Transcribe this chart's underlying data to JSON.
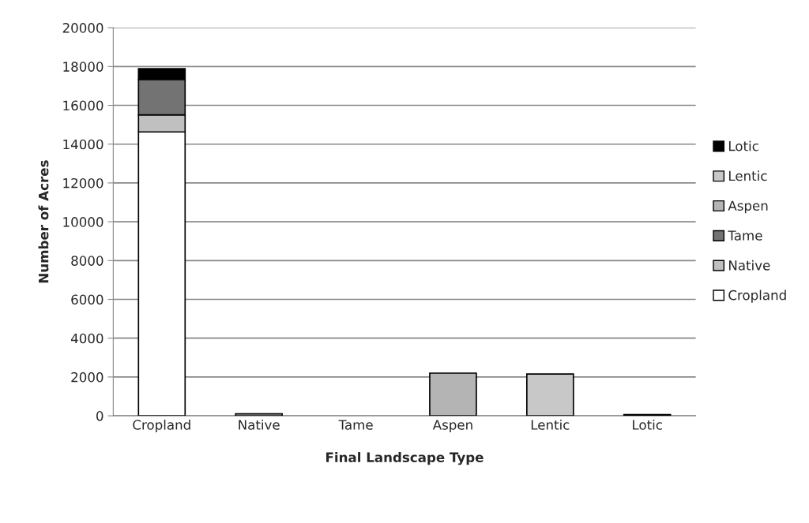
{
  "chart_data": {
    "type": "bar",
    "stacked": true,
    "xlabel": "Final Landscape Type",
    "ylabel": "Number of Acres",
    "categories": [
      "Cropland",
      "Native",
      "Tame",
      "Aspen",
      "Lentic",
      "Lotic"
    ],
    "series": [
      {
        "name": "Cropland",
        "color": "#ffffff",
        "values": [
          14630,
          0,
          0,
          0,
          0,
          0
        ]
      },
      {
        "name": "Native",
        "color": "#c0c0c0",
        "values": [
          880,
          100,
          0,
          0,
          0,
          0
        ]
      },
      {
        "name": "Tame",
        "color": "#737373",
        "values": [
          1830,
          0,
          0,
          0,
          0,
          0
        ]
      },
      {
        "name": "Aspen",
        "color": "#b4b4b4",
        "values": [
          0,
          0,
          0,
          2200,
          0,
          0
        ]
      },
      {
        "name": "Lentic",
        "color": "#c8c8c8",
        "values": [
          0,
          0,
          0,
          0,
          2150,
          0
        ]
      },
      {
        "name": "Lotic",
        "color": "#000000",
        "values": [
          550,
          0,
          0,
          0,
          0,
          60
        ]
      }
    ],
    "ylim": [
      0,
      20000
    ],
    "yticks": [
      0,
      2000,
      4000,
      6000,
      8000,
      10000,
      12000,
      14000,
      16000,
      18000,
      20000
    ],
    "grid": "y",
    "legend": "right"
  }
}
